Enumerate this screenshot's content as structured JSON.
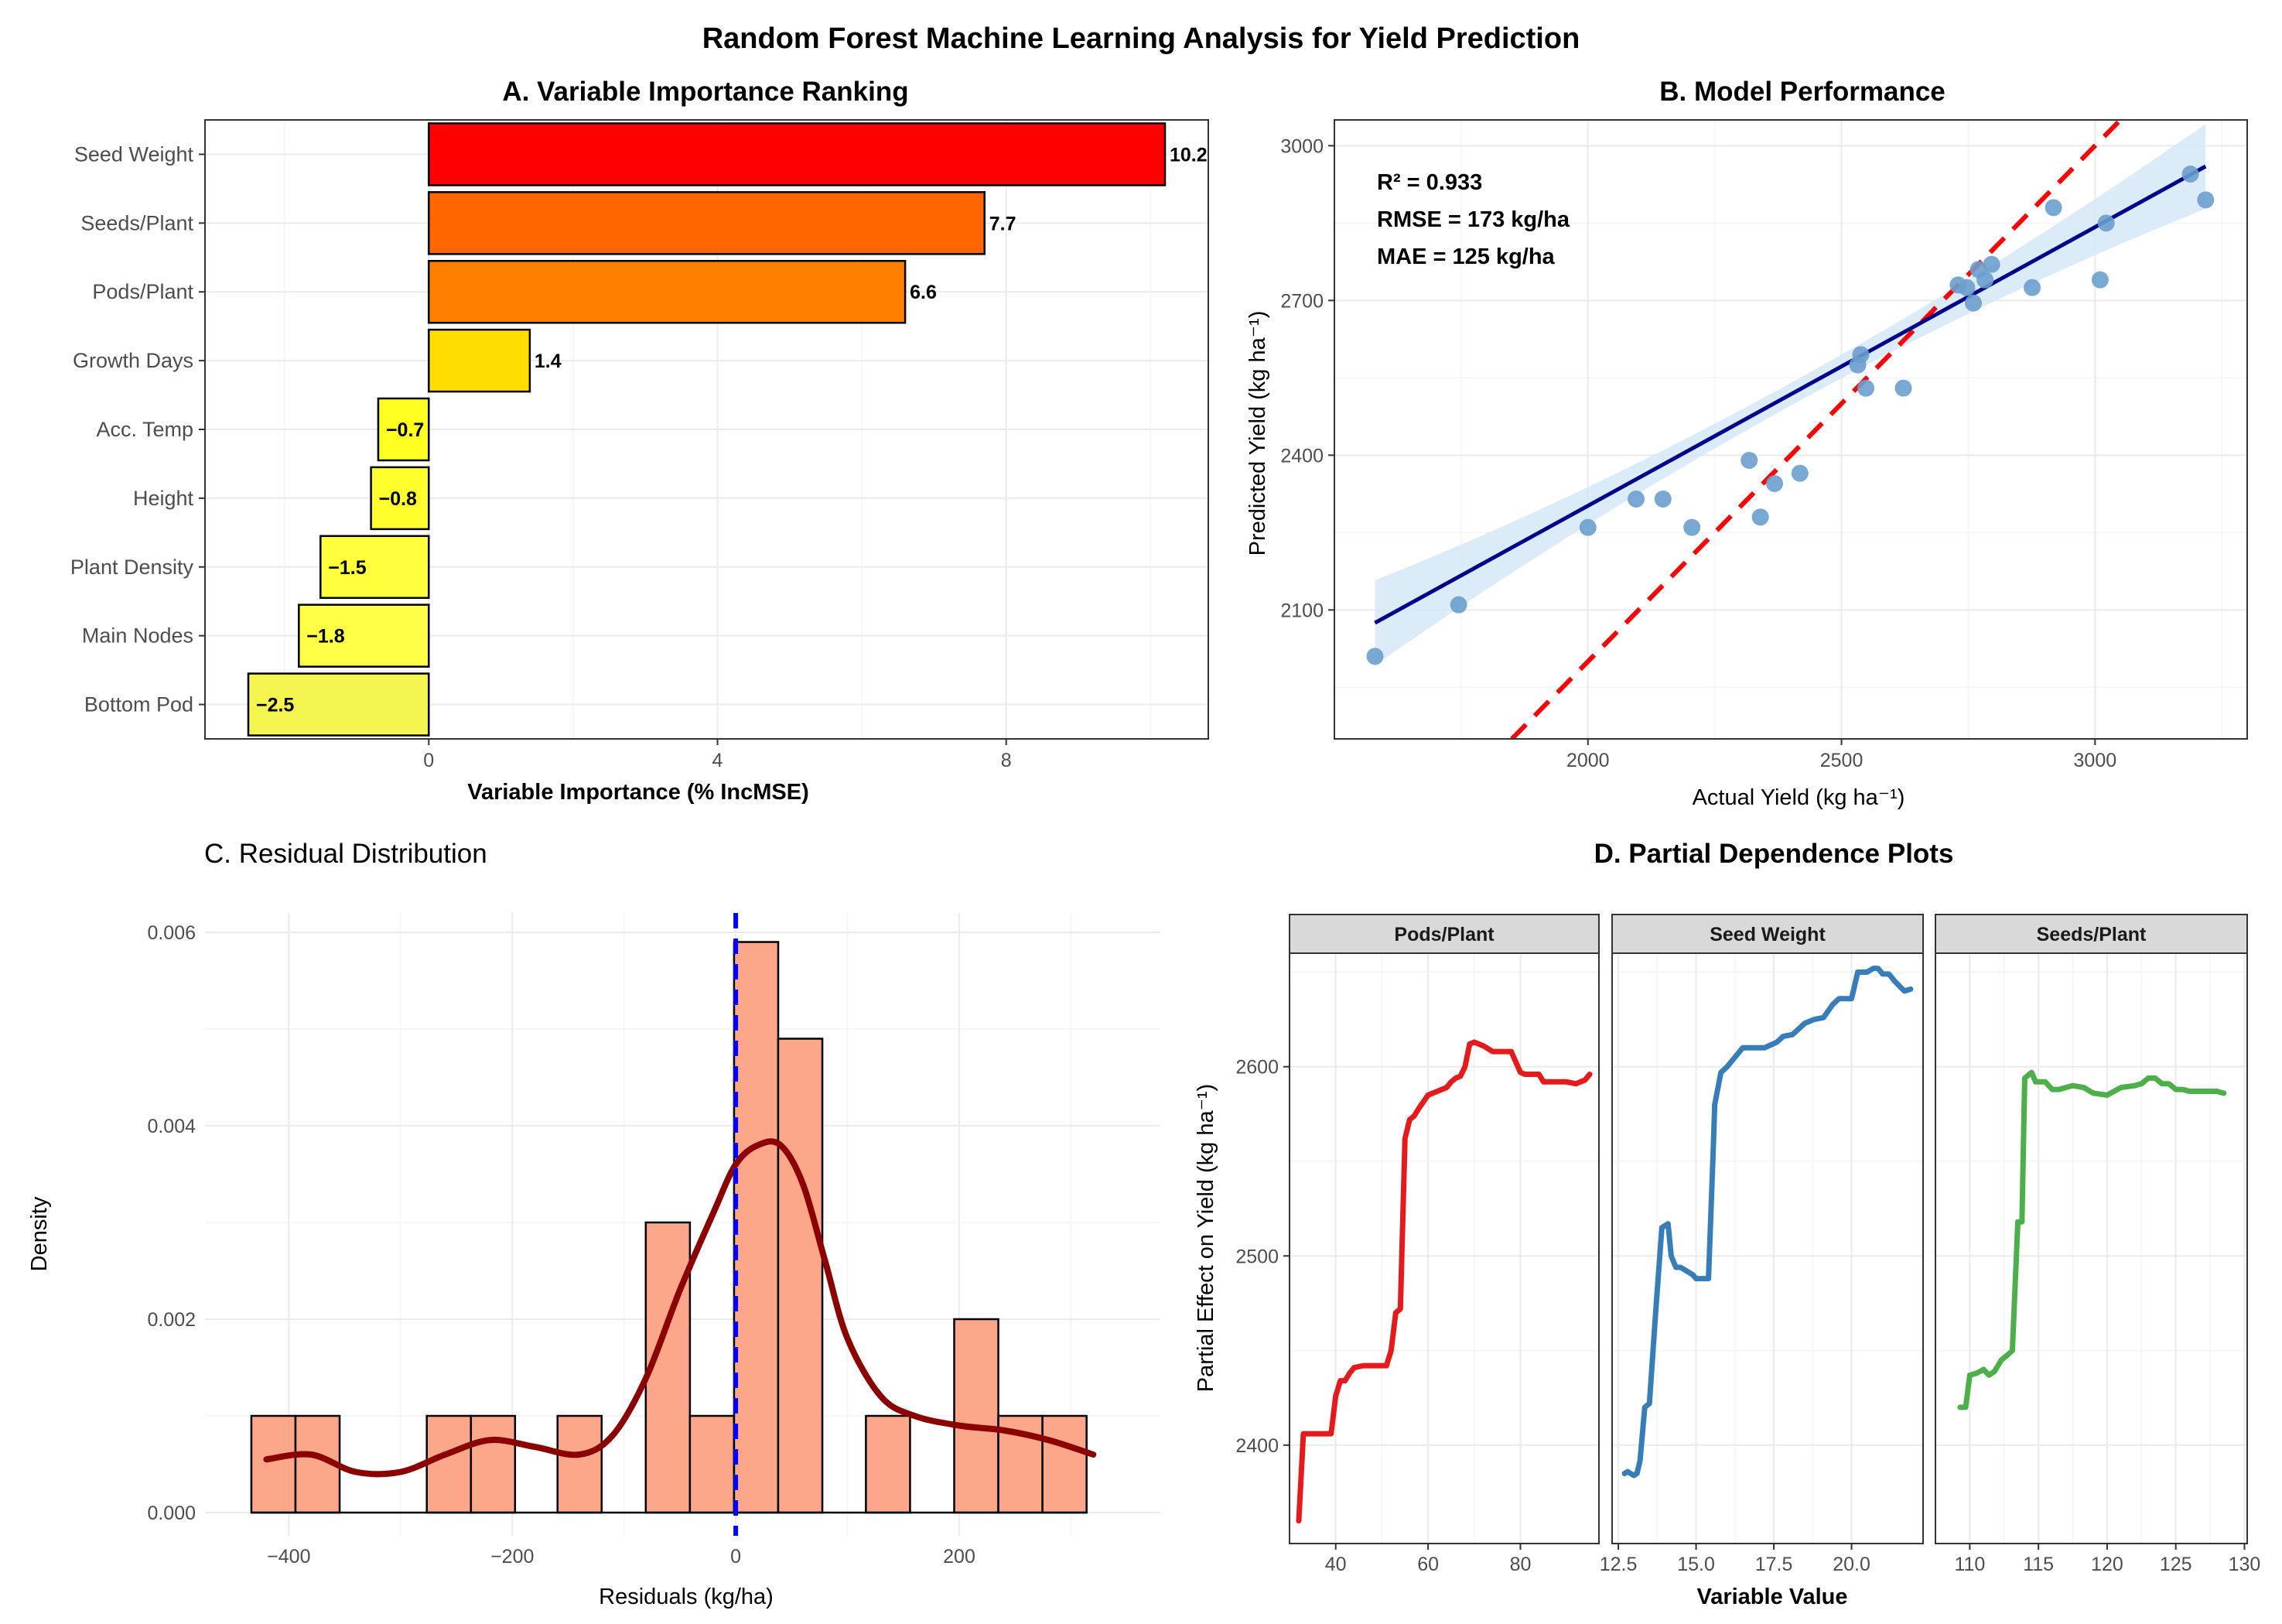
{
  "figure_title": "Random Forest Machine Learning Analysis for Yield Prediction",
  "chart_data": [
    {
      "panel": "A",
      "type": "bar",
      "orientation": "horizontal",
      "title": "A. Variable Importance Ranking",
      "xlabel": "Variable Importance (% IncMSE)",
      "ylabel": "",
      "xlim": [
        -3.1,
        10.8
      ],
      "xticks": [
        0,
        4,
        8
      ],
      "xtick_labels": [
        "0",
        "4",
        "8"
      ],
      "categories": [
        "Seed Weight",
        "Seeds/Plant",
        "Pods/Plant",
        "Growth Days",
        "Acc. Temp",
        "Height",
        "Plant Density",
        "Main Nodes",
        "Bottom Pod"
      ],
      "values": [
        10.2,
        7.7,
        6.6,
        1.4,
        -0.7,
        -0.8,
        -1.5,
        -1.8,
        -2.5
      ],
      "value_labels": [
        "10.2",
        "7.7",
        "6.6",
        "1.4",
        "−0.7",
        "−0.8",
        "−1.5",
        "−1.8",
        "−2.5"
      ],
      "colors": [
        "#ff0000",
        "#ff6600",
        "#ff8000",
        "#ffdd00",
        "#ffff22",
        "#ffff2e",
        "#ffff3c",
        "#ffff46",
        "#f5f550"
      ]
    },
    {
      "panel": "B",
      "type": "scatter",
      "title": "B. Model Performance",
      "xlabel": "Actual Yield (kg ha⁻¹)",
      "ylabel": "Predicted Yield (kg ha⁻¹)",
      "xlim": [
        1500,
        3300
      ],
      "ylim": [
        1850,
        3050
      ],
      "xticks": [
        2000,
        2500,
        3000
      ],
      "xtick_labels": [
        "2000",
        "2500",
        "3000"
      ],
      "yticks": [
        2100,
        2400,
        2700,
        3000
      ],
      "ytick_labels": [
        "2100",
        "2400",
        "2700",
        "3000"
      ],
      "annotations": [
        "R² = 0.933",
        "RMSE = 173 kg/ha",
        "MAE = 125 kg/ha"
      ],
      "x": [
        1580,
        1745,
        2000,
        2095,
        2148,
        2205,
        2318,
        2340,
        2368,
        2418,
        2532,
        2538,
        2548,
        2622,
        2730,
        2747,
        2760,
        2770,
        2783,
        2796,
        2876,
        2918,
        3010,
        3022,
        3188,
        3218
      ],
      "y": [
        2010,
        2110,
        2260,
        2315,
        2315,
        2260,
        2390,
        2280,
        2345,
        2365,
        2575,
        2595,
        2530,
        2530,
        2730,
        2725,
        2695,
        2760,
        2740,
        2770,
        2725,
        2880,
        2740,
        2850,
        2945,
        2895
      ],
      "fit_line": {
        "x": [
          1580,
          3218
        ],
        "y": [
          2075,
          2960
        ]
      },
      "identity_line": {
        "x": [
          1850,
          3060
        ],
        "y": [
          1850,
          3060
        ]
      },
      "point_color": "#6a9fcd",
      "fit_color": "#00008b",
      "band_color": "#d6e8f7",
      "identity_color": "#ff0000"
    },
    {
      "panel": "C",
      "type": "histogram",
      "title": "C. Residual Distribution",
      "xlabel": "Residuals (kg/ha)",
      "ylabel": "Density",
      "xlim": [
        -475,
        380
      ],
      "ylim": [
        0,
        0.0062
      ],
      "xticks": [
        -400,
        -200,
        0,
        200
      ],
      "xtick_labels": [
        "−400",
        "−200",
        "0",
        "200"
      ],
      "yticks": [
        0,
        0.002,
        0.004,
        0.006
      ],
      "ytick_labels": [
        "0.000",
        "0.002",
        "0.004",
        "0.006"
      ],
      "bin_width": 39.5,
      "bins_start": [
        -433.5,
        -394,
        -276.5,
        -237,
        -159.5,
        -80.5,
        -41,
        -1.5,
        38,
        116.5,
        195.5,
        235,
        274.5
      ],
      "bins_density": [
        0.001,
        0.001,
        0.001,
        0.001,
        0.001,
        0.003,
        0.001,
        0.0059,
        0.0049,
        0.001,
        0.002,
        0.001,
        0.001
      ],
      "bins_start_note": "",
      "density_curve": {
        "x": [
          -420,
          -380,
          -340,
          -300,
          -260,
          -220,
          -180,
          -140,
          -110,
          -80,
          -50,
          -20,
          0,
          20,
          40,
          60,
          80,
          100,
          130,
          160,
          200,
          240,
          280,
          320
        ],
        "y": [
          0.00055,
          0.0006,
          0.00042,
          0.00042,
          0.0006,
          0.00075,
          0.00068,
          0.0006,
          0.0008,
          0.0014,
          0.0023,
          0.0031,
          0.0036,
          0.0038,
          0.0038,
          0.0034,
          0.0026,
          0.0018,
          0.0012,
          0.001,
          0.0009,
          0.00085,
          0.00075,
          0.0006
        ]
      },
      "mean_line_x": 0,
      "bar_color": "#fca789",
      "curve_color": "#8b0000",
      "mean_line_color": "#0000ff"
    },
    {
      "panel": "D",
      "type": "line",
      "title": "D. Partial Dependence Plots",
      "xlabel": "Variable Value",
      "ylabel": "Partial Effect on Yield (kg ha⁻¹)",
      "ylim": [
        2348,
        2660
      ],
      "yticks": [
        2400,
        2500,
        2600
      ],
      "ytick_labels": [
        "2400",
        "2500",
        "2600"
      ],
      "facets": [
        {
          "strip": "Pods/Plant",
          "xlim": [
            30,
            97
          ],
          "xticks": [
            40,
            60,
            80
          ],
          "xtick_labels": [
            "40",
            "60",
            "80"
          ],
          "color": "#e41a1c",
          "x": [
            32,
            33,
            34,
            36,
            38,
            39,
            40,
            41,
            42,
            43,
            44,
            46,
            48,
            51,
            52,
            53,
            54,
            55,
            56,
            57,
            58,
            60,
            62,
            64,
            65,
            66,
            67,
            68,
            69,
            70,
            71,
            72,
            74,
            75,
            76,
            77,
            78,
            80,
            81,
            82,
            84,
            85,
            86,
            88,
            90,
            92,
            94,
            95
          ],
          "y": [
            2360,
            2406,
            2406,
            2406,
            2406,
            2406,
            2426,
            2434,
            2434,
            2438,
            2441,
            2442,
            2442,
            2442,
            2450,
            2470,
            2472,
            2562,
            2572,
            2574,
            2578,
            2585,
            2587,
            2589,
            2592,
            2594,
            2595,
            2600,
            2612,
            2613,
            2612,
            2611,
            2608,
            2608,
            2608,
            2608,
            2608,
            2597,
            2596,
            2596,
            2596,
            2592,
            2592,
            2592,
            2592,
            2591,
            2593,
            2596
          ]
        },
        {
          "strip": "Seed Weight",
          "xlim": [
            12.3,
            22.3
          ],
          "xticks": [
            12.5,
            15.0,
            17.5,
            20.0
          ],
          "xtick_labels": [
            "12.5",
            "15.0",
            "17.5",
            "20.0"
          ],
          "color": "#377eb8",
          "x": [
            12.7,
            12.8,
            13.0,
            13.1,
            13.2,
            13.35,
            13.5,
            13.7,
            13.9,
            14.1,
            14.2,
            14.35,
            14.5,
            14.9,
            15.0,
            15.4,
            15.55,
            15.6,
            15.8,
            16.0,
            16.3,
            16.5,
            16.7,
            17.2,
            17.6,
            17.8,
            18.1,
            18.5,
            18.8,
            19.1,
            19.4,
            19.6,
            20.0,
            20.2,
            20.3,
            20.5,
            20.7,
            20.85,
            21.0,
            21.2,
            21.4,
            21.7,
            21.9
          ],
          "y": [
            2385,
            2386,
            2384,
            2385,
            2392,
            2420,
            2422,
            2470,
            2515,
            2517,
            2500,
            2494,
            2494,
            2490,
            2488,
            2488,
            2555,
            2580,
            2597,
            2600,
            2606,
            2610,
            2610,
            2610,
            2613,
            2616,
            2617,
            2623,
            2625,
            2626,
            2633,
            2636,
            2636,
            2650,
            2650,
            2650,
            2652,
            2652,
            2649,
            2649,
            2645,
            2640,
            2641
          ]
        },
        {
          "strip": "Seeds/Plant",
          "xlim": [
            107.5,
            130.2
          ],
          "xticks": [
            110,
            115,
            120,
            125,
            130
          ],
          "xtick_labels": [
            "110",
            "115",
            "120",
            "125",
            "130"
          ],
          "color": "#4daf4a",
          "x": [
            109.3,
            109.7,
            110.0,
            110.5,
            111.0,
            111.4,
            111.8,
            112.3,
            112.8,
            113.1,
            113.5,
            113.8,
            114.0,
            114.5,
            114.8,
            115.5,
            116.0,
            116.5,
            117.5,
            118.3,
            119.0,
            120.0,
            121.0,
            122.0,
            122.5,
            123.0,
            123.5,
            124.0,
            124.5,
            125.0,
            125.5,
            126.0,
            127.0,
            128.0,
            128.5
          ],
          "y": [
            2420,
            2420,
            2437,
            2438,
            2440,
            2437,
            2439,
            2445,
            2448,
            2450,
            2518,
            2518,
            2594,
            2597,
            2592,
            2592,
            2588,
            2588,
            2590,
            2589,
            2586,
            2585,
            2589,
            2590,
            2591,
            2594,
            2594,
            2591,
            2591,
            2588,
            2588,
            2587,
            2587,
            2587,
            2586
          ]
        }
      ]
    }
  ]
}
